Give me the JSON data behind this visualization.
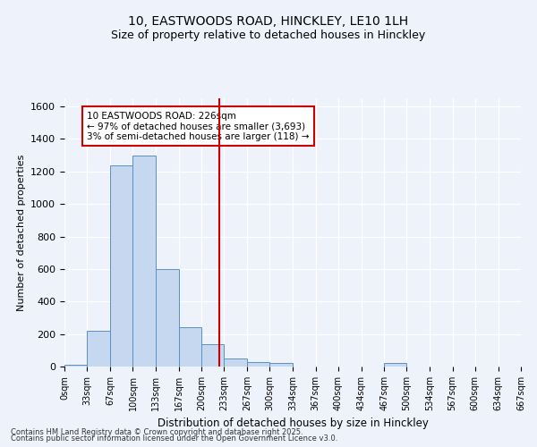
{
  "title1": "10, EASTWOODS ROAD, HINCKLEY, LE10 1LH",
  "title2": "Size of property relative to detached houses in Hinckley",
  "xlabel": "Distribution of detached houses by size in Hinckley",
  "ylabel": "Number of detached properties",
  "bin_edges": [
    0,
    33,
    67,
    100,
    133,
    167,
    200,
    233,
    267,
    300,
    334,
    367,
    400,
    434,
    467,
    500,
    534,
    567,
    600,
    634,
    667
  ],
  "bar_heights": [
    10,
    220,
    1240,
    1300,
    600,
    240,
    140,
    50,
    30,
    20,
    0,
    0,
    0,
    0,
    20,
    0,
    0,
    0,
    0,
    0
  ],
  "bar_color": "#c5d8f0",
  "bar_edge_color": "#5b8fc9",
  "property_size": 226,
  "vline_color": "#cc0000",
  "annotation_text": "10 EASTWOODS ROAD: 226sqm\n← 97% of detached houses are smaller (3,693)\n3% of semi-detached houses are larger (118) →",
  "annotation_box_color": "#cc0000",
  "annotation_fill_color": "#ffffff",
  "ylim": [
    0,
    1650
  ],
  "yticks": [
    0,
    200,
    400,
    600,
    800,
    1000,
    1200,
    1400,
    1600
  ],
  "bg_color": "#eef2fb",
  "grid_color": "#ffffff",
  "footer_line1": "Contains HM Land Registry data © Crown copyright and database right 2025.",
  "footer_line2": "Contains public sector information licensed under the Open Government Licence v3.0."
}
